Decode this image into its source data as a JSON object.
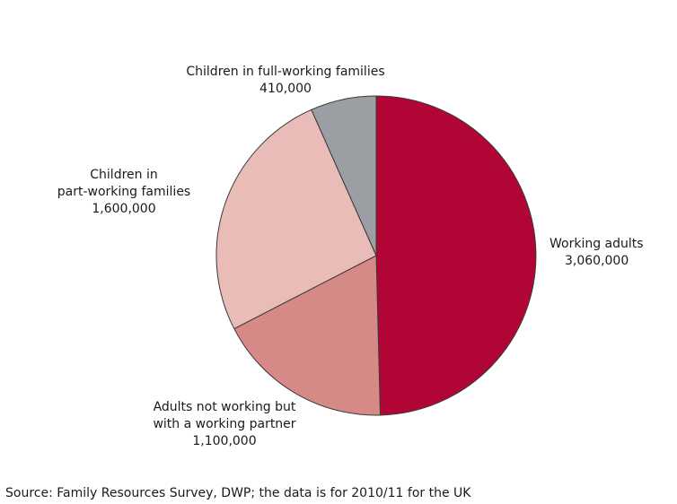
{
  "chart_data": {
    "type": "pie",
    "title": "",
    "slices": [
      {
        "key": "working_adults",
        "label_lines": [
          "Working adults"
        ],
        "value": 3060000,
        "value_label": "3,060,000",
        "color": "#b10535"
      },
      {
        "key": "adults_not_working",
        "label_lines": [
          "Adults not working but",
          "with a working partner"
        ],
        "value": 1100000,
        "value_label": "1,100,000",
        "color": "#d68a87"
      },
      {
        "key": "children_part_working",
        "label_lines": [
          "Children in",
          "part-working families"
        ],
        "value": 1600000,
        "value_label": "1,600,000",
        "color": "#e9bcb8"
      },
      {
        "key": "children_full_working",
        "label_lines": [
          "Children in full-working families"
        ],
        "value": 410000,
        "value_label": "410,000",
        "color": "#9b9ea3"
      }
    ],
    "start_angle_deg": 0,
    "direction": "clockwise",
    "legend": "none"
  },
  "source_note": "Source: Family Resources Survey, DWP; the data is for 2010/11 for the UK"
}
